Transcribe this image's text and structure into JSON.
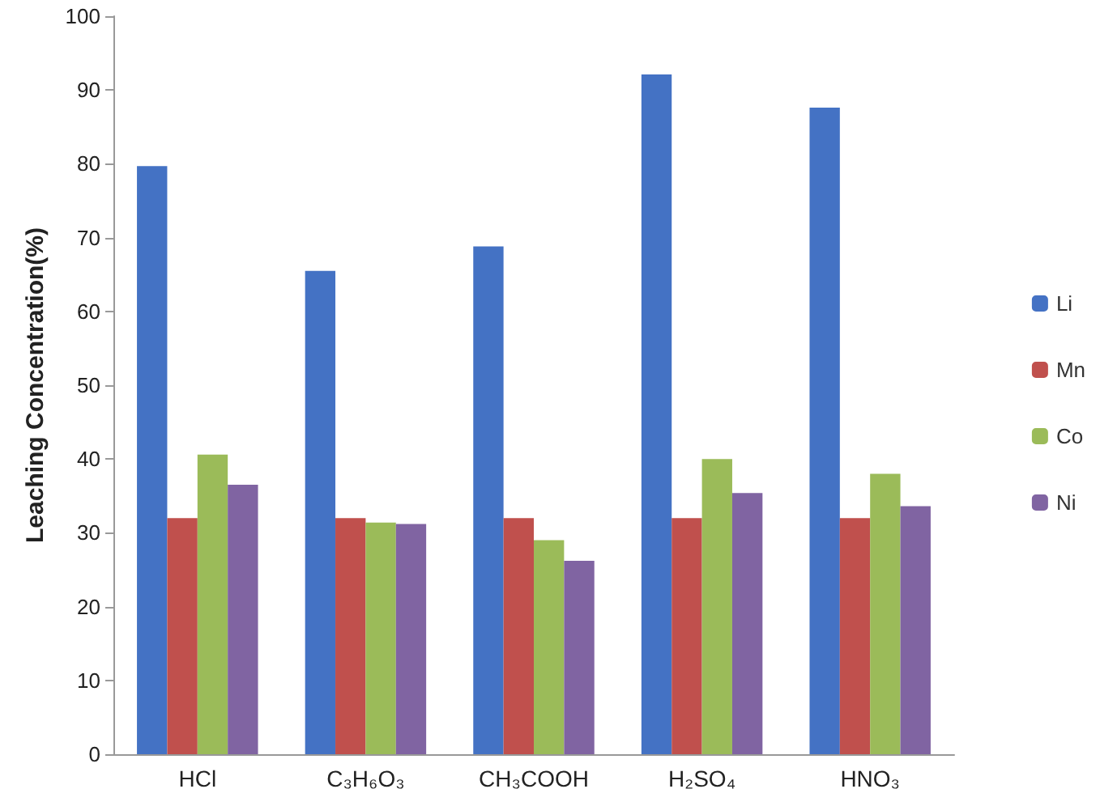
{
  "chart_data": {
    "type": "bar",
    "ylabel": "Leaching Concentration(%)",
    "categories": [
      "HCl",
      "C₃H₆O₃",
      "CH₃COOH",
      "H₂SO₄",
      "HNO₃"
    ],
    "series": [
      {
        "name": "Li",
        "color": "#4472c4",
        "values": [
          79.7,
          65.5,
          68.8,
          92.1,
          87.6
        ]
      },
      {
        "name": "Mn",
        "color": "#c0504d",
        "values": [
          32,
          32,
          32,
          32,
          32
        ]
      },
      {
        "name": "Co",
        "color": "#9bbb59",
        "values": [
          40.6,
          31.4,
          29,
          40,
          38
        ]
      },
      {
        "name": "Ni",
        "color": "#8064a2",
        "values": [
          36.5,
          31.2,
          26.2,
          35.4,
          33.6
        ]
      }
    ],
    "ylim": [
      0,
      100
    ],
    "yticks": [
      0,
      10,
      20,
      30,
      40,
      50,
      60,
      70,
      80,
      90,
      100
    ],
    "grid": false,
    "legend": "right"
  }
}
